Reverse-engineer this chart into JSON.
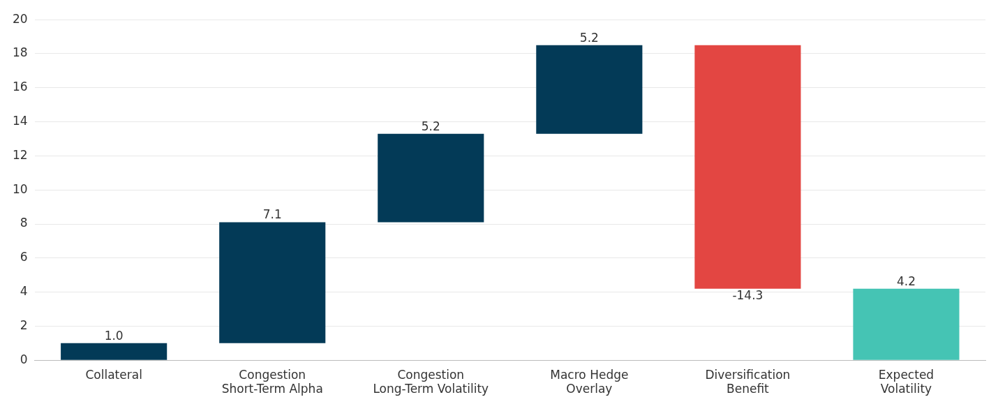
{
  "chart_data": {
    "type": "bar",
    "categories": [
      "Collateral",
      "Congestion\nShort-Term Alpha",
      "Congestion\nLong-Term Volatility",
      "Macro Hedge\nOverlay",
      "Diversification\nBenefit",
      "Expected\nVolatility"
    ],
    "values": [
      1.0,
      7.1,
      5.2,
      5.2,
      -14.3,
      4.2
    ],
    "base": [
      0,
      1.0,
      8.1,
      13.3,
      18.5,
      0
    ],
    "colors": [
      "#033a57",
      "#033a57",
      "#033a57",
      "#033a57",
      "#e34642",
      "#45c4b4"
    ],
    "value_labels": [
      "1.0",
      "7.1",
      "5.2",
      "5.2",
      "-14.3",
      "4.2"
    ],
    "ylim": [
      0,
      20
    ],
    "yticks": [
      0,
      2,
      4,
      6,
      8,
      10,
      12,
      14,
      16,
      18,
      20
    ],
    "grid": "y",
    "legend": false
  }
}
